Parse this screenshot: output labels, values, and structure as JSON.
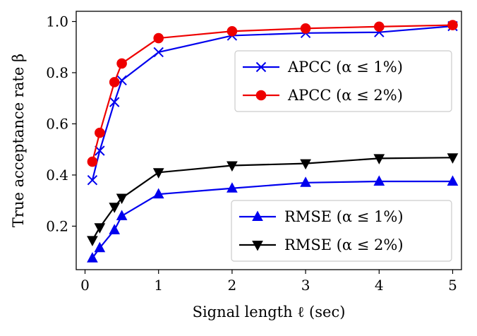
{
  "chart_data": {
    "type": "line",
    "xlabel": "Signal length ℓ (sec)",
    "ylabel": "True acceptance rate β",
    "xlim": [
      -0.12,
      5.12
    ],
    "ylim": [
      0.03,
      1.04
    ],
    "xticks": [
      0,
      1,
      2,
      3,
      4,
      5
    ],
    "yticks": [
      0.2,
      0.4,
      0.6,
      0.8,
      1.0
    ],
    "xtick_labels": [
      "0",
      "1",
      "2",
      "3",
      "4",
      "5"
    ],
    "ytick_labels": [
      "0.2",
      "0.4",
      "0.6",
      "0.8",
      "1.0"
    ],
    "grid": false,
    "x": [
      0.1,
      0.2,
      0.4,
      0.5,
      1,
      2,
      3,
      4,
      5
    ],
    "series": [
      {
        "name": "APCC (α ≤ 1%)",
        "color": "#0000ee",
        "marker": "x",
        "values": [
          0.38,
          0.495,
          0.685,
          0.77,
          0.88,
          0.945,
          0.955,
          0.958,
          0.982
        ]
      },
      {
        "name": "APCC (α ≤ 2%)",
        "color": "#ee0000",
        "marker": "circle",
        "values": [
          0.452,
          0.565,
          0.763,
          0.836,
          0.935,
          0.962,
          0.973,
          0.98,
          0.986
        ]
      },
      {
        "name": "RMSE (α ≤ 1%)",
        "color": "#0000ee",
        "marker": "triangle-up",
        "values": [
          0.075,
          0.115,
          0.185,
          0.24,
          0.325,
          0.348,
          0.37,
          0.375,
          0.375
        ]
      },
      {
        "name": "RMSE (α ≤ 2%)",
        "color": "#000000",
        "marker": "triangle-down",
        "values": [
          0.145,
          0.195,
          0.275,
          0.31,
          0.41,
          0.437,
          0.445,
          0.465,
          0.468
        ]
      }
    ],
    "legends": [
      {
        "position": "center-right",
        "series": [
          0,
          1
        ]
      },
      {
        "position": "lower-right",
        "series": [
          2,
          3
        ]
      }
    ]
  }
}
